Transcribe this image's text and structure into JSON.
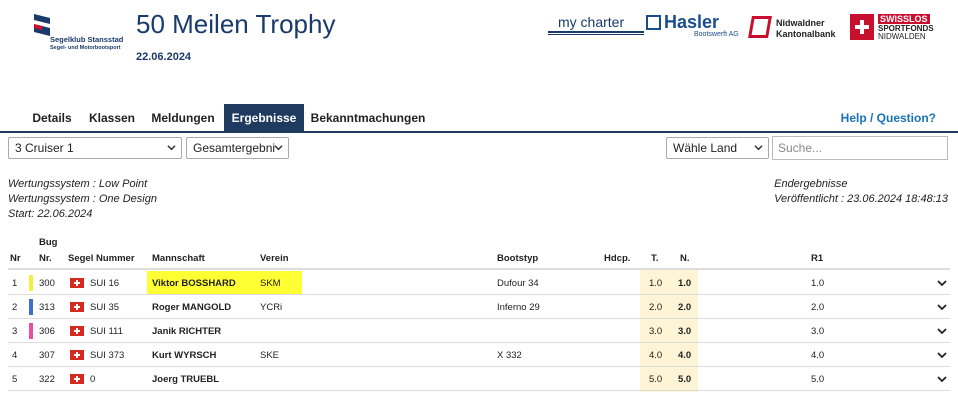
{
  "header": {
    "club_name_line1": "Segelklub Stansstad",
    "club_name_line2": "Segel- und Motorbootsport",
    "title": "50 Meilen Trophy",
    "date": "22.06.2024",
    "sponsors": {
      "mycharter": "my charter",
      "hasler": "Hasler",
      "hasler_sub": "Bootswerft AG",
      "nkb_line1": "Nidwaldner",
      "nkb_line2": "Kantonalbank",
      "sfn_line1": "SWISSLOS",
      "sfn_line2": "SPORTFONDS",
      "sfn_line3": "NIDWALDEN"
    }
  },
  "tabs": [
    {
      "label": "Details"
    },
    {
      "label": "Klassen"
    },
    {
      "label": "Meldungen"
    },
    {
      "label": "Ergebnisse",
      "active": true
    },
    {
      "label": "Bekanntmachungen"
    }
  ],
  "help_link": "Help / Question?",
  "filters": {
    "class_select": "3 Cruiser 1",
    "result_select": "Gesamtergebni",
    "country_select": "Wähle Land",
    "search_placeholder": "Suche..."
  },
  "info_left": {
    "line1": "Wertungssystem : Low Point",
    "line2": "Wertungssystem : One Design",
    "line3": "Start: 22.06.2024"
  },
  "info_right": {
    "line1": "Endergebnisse",
    "line2": "Veröffentlicht : 23.06.2024 18:48:13"
  },
  "table": {
    "headers": {
      "nr": "Nr",
      "bug_line1": "Bug",
      "bug_line2": "Nr.",
      "sail": "Segel Nummer",
      "crew": "Mannschaft",
      "club": "Verein",
      "boat": "Bootstyp",
      "hdcp": "Hdcp.",
      "t": "T.",
      "n": "N.",
      "r1": "R1"
    },
    "rows": [
      {
        "nr": "1",
        "bug": "300",
        "color": "#f5f03a",
        "sail": "SUI 16",
        "crew": "Viktor BOSSHARD",
        "club": "SKM",
        "boat": "Dufour 34",
        "hdcp": "",
        "t": "1.0",
        "n": "1.0",
        "r1": "1.0"
      },
      {
        "nr": "2",
        "bug": "313",
        "color": "#3b6fd4",
        "sail": "SUI 35",
        "crew": "Roger MANGOLD",
        "club": "YCRi",
        "boat": "Inferno 29",
        "hdcp": "",
        "t": "2.0",
        "n": "2.0",
        "r1": "2.0"
      },
      {
        "nr": "3",
        "bug": "306",
        "color": "#e84f9c",
        "sail": "SUI 111",
        "crew": "Janik RICHTER",
        "club": "",
        "boat": "",
        "hdcp": "",
        "t": "3.0",
        "n": "3.0",
        "r1": "3.0"
      },
      {
        "nr": "4",
        "bug": "307",
        "color": "",
        "sail": "SUI 373",
        "crew": "Kurt WYRSCH",
        "club": "SKE",
        "boat": "X 332",
        "hdcp": "",
        "t": "4.0",
        "n": "4.0",
        "r1": "4.0"
      },
      {
        "nr": "5",
        "bug": "322",
        "color": "",
        "sail": "0",
        "crew": "Joerg TRUEBL",
        "club": "",
        "boat": "",
        "hdcp": "",
        "t": "5.0",
        "n": "5.0",
        "r1": "5.0"
      }
    ]
  },
  "colors": {
    "navy": "#1e3a5f",
    "link": "#1a73b8",
    "highlight": "#ffff33",
    "score_col_bg": "#fdf4d6"
  }
}
